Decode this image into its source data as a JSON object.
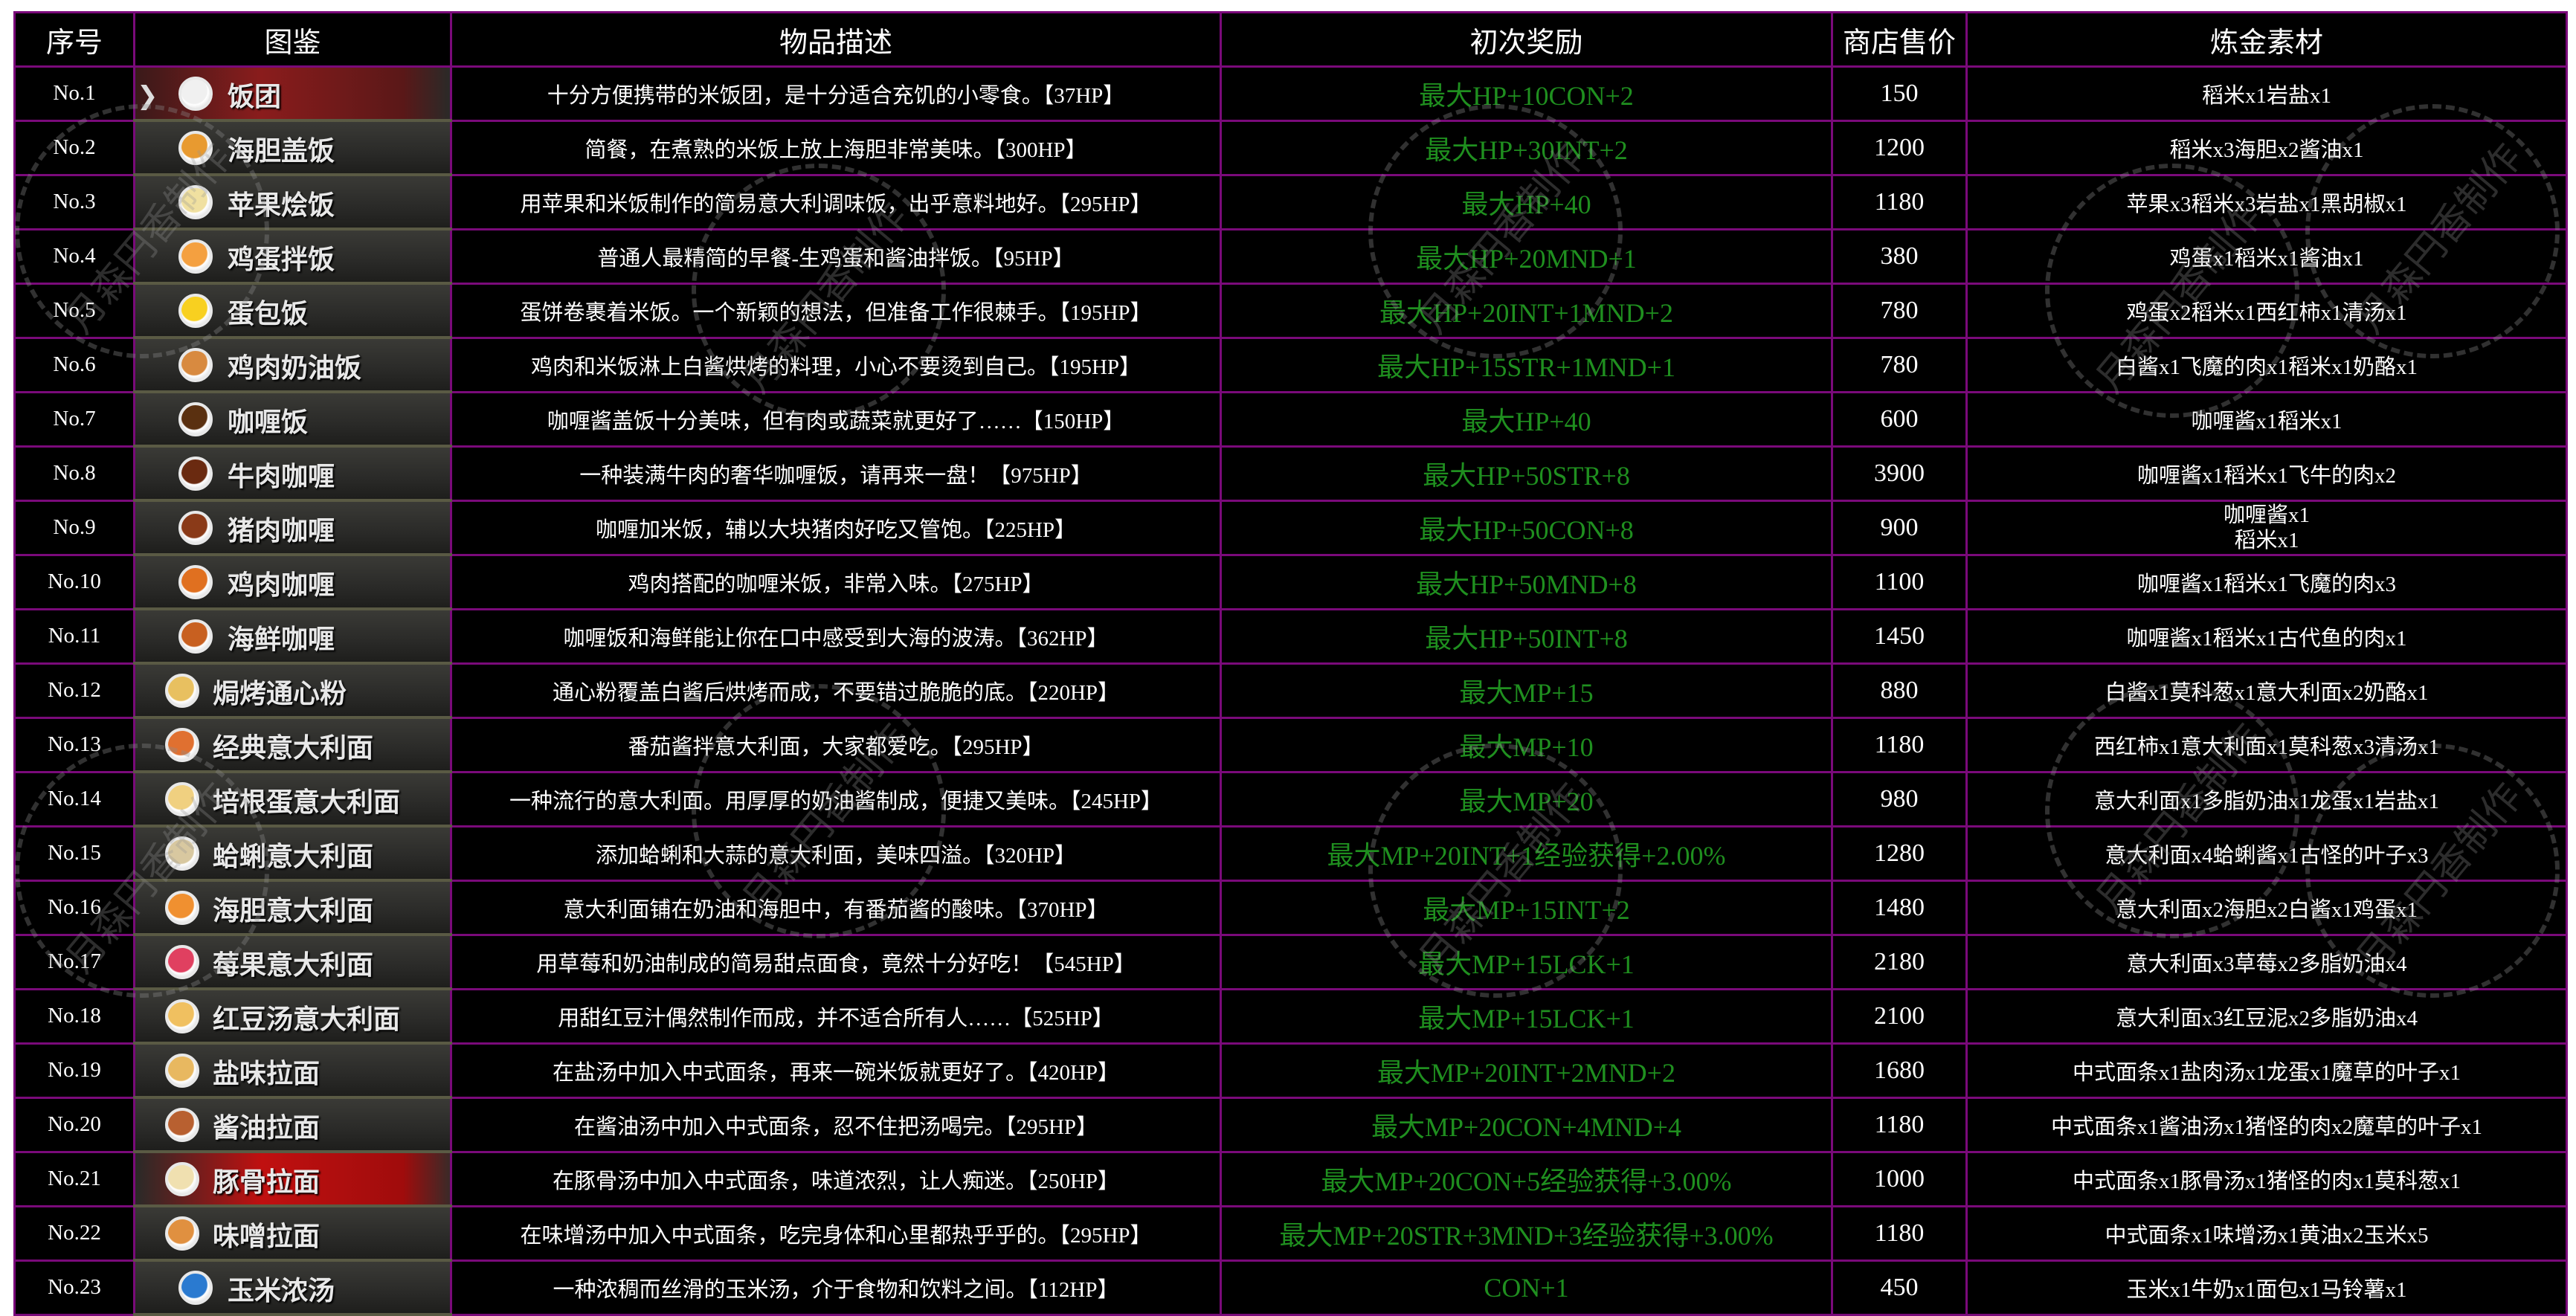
{
  "headers": [
    "序号",
    "图鉴",
    "物品描述",
    "初次奖励",
    "商店售价",
    "炼金素材"
  ],
  "watermark": "月森円香制作",
  "colors": {
    "border": "#7a0a7a",
    "reward_text": "#1f8f1f",
    "selected_row": "#8a1c1c",
    "highlight_row": "#c01010"
  },
  "cursor_icon": "chevron-right-icon",
  "rows": [
    {
      "no": "No.1",
      "name": "饭团",
      "desc": "十分方便携带的米饭团，是十分适合充饥的小零食。【37HP】",
      "reward": "最大HP+10CON+2",
      "price": "150",
      "materials": "稻米x1岩盐x1",
      "icon": "rice-ball-icon",
      "food_color": "#f0f0f0",
      "state": "selected"
    },
    {
      "no": "No.2",
      "name": "海胆盖饭",
      "desc": "简餐，在煮熟的米饭上放上海胆非常美味。【300HP】",
      "reward": "最大HP+30INT+2",
      "price": "1200",
      "materials": "稻米x3海胆x2酱油x1",
      "icon": "sea-urchin-rice-bowl-icon",
      "food_color": "#e89a30"
    },
    {
      "no": "No.3",
      "name": "苹果烩饭",
      "desc": "用苹果和米饭制作的简易意大利调味饭，出乎意料地好。【295HP】",
      "reward": "最大HP+40",
      "price": "1180",
      "materials": "苹果x3稻米x3岩盐x1黑胡椒x1",
      "icon": "apple-risotto-icon",
      "food_color": "#f0e0a0"
    },
    {
      "no": "No.4",
      "name": "鸡蛋拌饭",
      "desc": "普通人最精简的早餐-生鸡蛋和酱油拌饭。【95HP】",
      "reward": "最大HP+20MND+1",
      "price": "380",
      "materials": "鸡蛋x1稻米x1酱油x1",
      "icon": "egg-rice-icon",
      "food_color": "#f4a040"
    },
    {
      "no": "No.5",
      "name": "蛋包饭",
      "desc": "蛋饼卷裹着米饭。一个新颖的想法，但准备工作很棘手。【195HP】",
      "reward": "最大HP+20INT+1MND+2",
      "price": "780",
      "materials": "鸡蛋x2稻米x1西红柿x1清汤x1",
      "icon": "omelette-rice-icon",
      "food_color": "#f8d020"
    },
    {
      "no": "No.6",
      "name": "鸡肉奶油饭",
      "desc": "鸡肉和米饭淋上白酱烘烤的料理，小心不要烫到自己。【195HP】",
      "reward": "最大HP+15STR+1MND+1",
      "price": "780",
      "materials": "白酱x1飞魔的肉x1稻米x1奶酪x1",
      "icon": "chicken-doria-icon",
      "food_color": "#d88a40"
    },
    {
      "no": "No.7",
      "name": "咖喱饭",
      "desc": "咖喱酱盖饭十分美味，但有肉或蔬菜就更好了……【150HP】",
      "reward": "最大HP+40",
      "price": "600",
      "materials": "咖喱酱x1稻米x1",
      "icon": "curry-rice-icon",
      "food_color": "#5a3010"
    },
    {
      "no": "No.8",
      "name": "牛肉咖喱",
      "desc": "一种装满牛肉的奢华咖喱饭，请再来一盘！【975HP】",
      "reward": "最大HP+50STR+8",
      "price": "3900",
      "materials": "咖喱酱x1稻米x1飞牛的肉x2",
      "icon": "beef-curry-icon",
      "food_color": "#6a2a10"
    },
    {
      "no": "No.9",
      "name": "猪肉咖喱",
      "desc": "咖喱加米饭，辅以大块猪肉好吃又管饱。【225HP】",
      "reward": "最大HP+50CON+8",
      "price": "900",
      "materials": [
        "咖喱酱x1",
        "稻米x1"
      ],
      "icon": "pork-curry-icon",
      "food_color": "#8a3a18"
    },
    {
      "no": "No.10",
      "name": "鸡肉咖喱",
      "desc": "鸡肉搭配的咖喱米饭，非常入味。【275HP】",
      "reward": "最大HP+50MND+8",
      "price": "1100",
      "materials": "咖喱酱x1稻米x1飞魔的肉x3",
      "icon": "chicken-curry-icon",
      "food_color": "#e07020"
    },
    {
      "no": "No.11",
      "name": "海鲜咖喱",
      "desc": "咖喱饭和海鲜能让你在口中感受到大海的波涛。【362HP】",
      "reward": "最大HP+50INT+8",
      "price": "1450",
      "materials": "咖喱酱x1稻米x1古代鱼的肉x1",
      "icon": "seafood-curry-icon",
      "food_color": "#c86020"
    },
    {
      "no": "No.12",
      "name": "焗烤通心粉",
      "desc": "通心粉覆盖白酱后烘烤而成，不要错过脆脆的底。【220HP】",
      "reward": "最大MP+15",
      "price": "880",
      "materials": "白酱x1莫科葱x1意大利面x2奶酪x1",
      "icon": "macaroni-gratin-icon",
      "food_color": "#e8c060",
      "wide": true
    },
    {
      "no": "No.13",
      "name": "经典意大利面",
      "desc": "番茄酱拌意大利面，大家都爱吃。【295HP】",
      "reward": "最大MP+10",
      "price": "1180",
      "materials": "西红柿x1意大利面x1莫科葱x3清汤x1",
      "icon": "classic-pasta-icon",
      "food_color": "#e07030",
      "wide": true
    },
    {
      "no": "No.14",
      "name": "培根蛋意大利面",
      "desc": "一种流行的意大利面。用厚厚的奶油酱制成，便捷又美味。【245HP】",
      "reward": "最大MP+20",
      "price": "980",
      "materials": "意大利面x1多脂奶油x1龙蛋x1岩盐x1",
      "icon": "carbonara-icon",
      "food_color": "#f0d080",
      "wide": true
    },
    {
      "no": "No.15",
      "name": "蛤蜊意大利面",
      "desc": "添加蛤蜊和大蒜的意大利面，美味四溢。【320HP】",
      "reward": "最大MP+20INT+1经验获得+2.00%",
      "price": "1280",
      "materials": "意大利面x4蛤蜊酱x1古怪的叶子x3",
      "icon": "clam-pasta-icon",
      "food_color": "#d8c8a0",
      "wide": true
    },
    {
      "no": "No.16",
      "name": "海胆意大利面",
      "desc": "意大利面铺在奶油和海胆中，有番茄酱的酸味。【370HP】",
      "reward": "最大MP+15INT+2",
      "price": "1480",
      "materials": "意大利面x2海胆x2白酱x1鸡蛋x1",
      "icon": "sea-urchin-pasta-icon",
      "food_color": "#f09030",
      "wide": true
    },
    {
      "no": "No.17",
      "name": "莓果意大利面",
      "desc": "用草莓和奶油制成的简易甜点面食，竟然十分好吃！【545HP】",
      "reward": "最大MP+15LCK+1",
      "price": "2180",
      "materials": "意大利面x3草莓x2多脂奶油x4",
      "icon": "berry-pasta-icon",
      "food_color": "#e04060",
      "wide": true
    },
    {
      "no": "No.18",
      "name": "红豆汤意大利面",
      "desc": "用甜红豆汁偶然制作而成，并不适合所有人……【525HP】",
      "reward": "最大MP+15LCK+1",
      "price": "2100",
      "materials": "意大利面x3红豆泥x2多脂奶油x4",
      "icon": "red-bean-pasta-icon",
      "food_color": "#f0c060",
      "wide": true
    },
    {
      "no": "No.19",
      "name": "盐味拉面",
      "desc": "在盐汤中加入中式面条，再来一碗米饭就更好了。【420HP】",
      "reward": "最大MP+20INT+2MND+2",
      "price": "1680",
      "materials": "中式面条x1盐肉汤x1龙蛋x1魔草的叶子x1",
      "icon": "salt-ramen-icon",
      "food_color": "#e8b860",
      "wide": true
    },
    {
      "no": "No.20",
      "name": "酱油拉面",
      "desc": "在酱油汤中加入中式面条，忍不住把汤喝完。【295HP】",
      "reward": "最大MP+20CON+4MND+4",
      "price": "1180",
      "materials": "中式面条x1酱油汤x1猪怪的肉x2魔草的叶子x1",
      "icon": "shoyu-ramen-icon",
      "food_color": "#b86030",
      "wide": true
    },
    {
      "no": "No.21",
      "name": "豚骨拉面",
      "desc": "在豚骨汤中加入中式面条，味道浓烈，让人痴迷。【250HP】",
      "reward": "最大MP+20CON+5经验获得+3.00%",
      "price": "1000",
      "materials": "中式面条x1豚骨汤x1猪怪的肉x1莫科葱x1",
      "icon": "tonkotsu-ramen-icon",
      "food_color": "#f0e0b0",
      "wide": true,
      "state": "highlighted"
    },
    {
      "no": "No.22",
      "name": "味噌拉面",
      "desc": "在味增汤中加入中式面条，吃完身体和心里都热乎乎的。【295HP】",
      "reward": "最大MP+20STR+3MND+3经验获得+3.00%",
      "price": "1180",
      "materials": "中式面条x1味增汤x1黄油x2玉米x5",
      "icon": "miso-ramen-icon",
      "food_color": "#e09040",
      "wide": true
    },
    {
      "no": "No.23",
      "name": "玉米浓汤",
      "desc": "一种浓稠而丝滑的玉米汤，介于食物和饮料之间。【112HP】",
      "reward": "CON+1",
      "price": "450",
      "materials": "玉米x1牛奶x1面包x1马铃薯x1",
      "icon": "corn-soup-icon",
      "food_color": "#2a7ad0"
    }
  ]
}
